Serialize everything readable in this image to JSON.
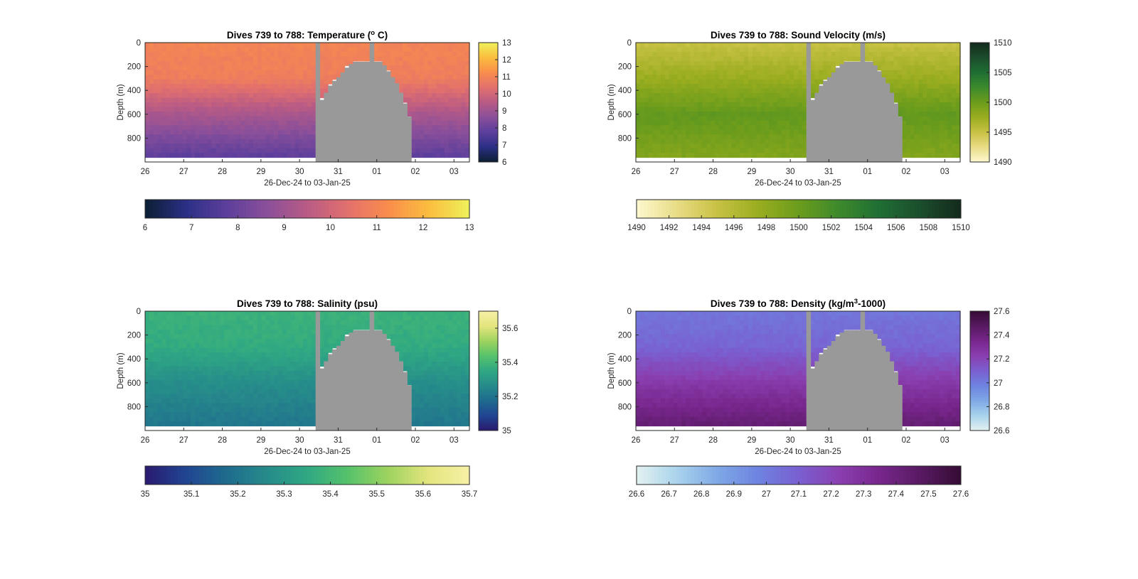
{
  "chart_data": [
    {
      "type": "heatmap",
      "title": "Dives 739 to 788: Temperature (°C)",
      "title_parts": [
        "Dives 739 to 788: Temperature (",
        "o",
        " C)"
      ],
      "xlabel": "26-Dec-24 to 03-Jan-25",
      "ylabel": "Depth (m)",
      "x_tick_labels": [
        "26",
        "27",
        "28",
        "29",
        "30",
        "31",
        "01",
        "02",
        "03"
      ],
      "x_range_days": [
        0,
        8.4
      ],
      "y_ticks": [
        0,
        200,
        400,
        600,
        800
      ],
      "ylim": [
        0,
        1000
      ],
      "y_reversed": true,
      "colorbar": {
        "range": [
          6,
          13
        ],
        "side_ticks": [
          6,
          7,
          8,
          9,
          10,
          11,
          12,
          13
        ],
        "bottom_ticks": [
          "6",
          "7",
          "8",
          "9",
          "10",
          "11",
          "12",
          "13"
        ],
        "colors": [
          "#0b1f33",
          "#2b2f85",
          "#5c3f9c",
          "#8a4f9a",
          "#b95b85",
          "#e2706d",
          "#f98d4c",
          "#fbbd3e",
          "#eef25a"
        ]
      },
      "profile_value": {
        "surface": 11.0,
        "at_300m": 10.8,
        "at_600m": 9.2,
        "bottom": 7.6
      },
      "no_data_value": "gray",
      "no_data_color": "#999999"
    },
    {
      "type": "heatmap",
      "title": "Dives 739 to 788: Sound Velocity (m/s)",
      "title_parts": [
        "Dives 739 to 788: Sound Velocity (m/s)",
        "",
        ""
      ],
      "xlabel": "26-Dec-24 to 03-Jan-25",
      "ylabel": "Depth (m)",
      "x_tick_labels": [
        "26",
        "27",
        "28",
        "29",
        "30",
        "31",
        "01",
        "02",
        "03"
      ],
      "x_range_days": [
        0,
        8.4
      ],
      "y_ticks": [
        0,
        200,
        400,
        600,
        800
      ],
      "ylim": [
        0,
        1000
      ],
      "y_reversed": true,
      "colorbar": {
        "range": [
          1490,
          1510
        ],
        "side_ticks": [
          1490,
          1495,
          1500,
          1505,
          1510
        ],
        "bottom_ticks": [
          "1490",
          "1492",
          "1494",
          "1496",
          "1498",
          "1500",
          "1502",
          "1504",
          "1506",
          "1508",
          "1510"
        ],
        "colors": [
          "#fdf8cf",
          "#e8dc85",
          "#c7c143",
          "#9aad1f",
          "#6b9c1c",
          "#3c8a2c",
          "#1f6e34",
          "#1b4d2c",
          "#142a1c"
        ]
      },
      "profile_value": {
        "surface": 1495.0,
        "at_300m": 1497.5,
        "at_600m": 1500.5,
        "bottom": 1498.5
      },
      "no_data_color": "#999999"
    },
    {
      "type": "heatmap",
      "title": "Dives 739 to 788: Salinity (psu)",
      "title_parts": [
        "Dives 739 to 788: Salinity (psu)",
        "",
        ""
      ],
      "xlabel": "26-Dec-24 to 03-Jan-25",
      "ylabel": "Depth (m)",
      "x_tick_labels": [
        "26",
        "27",
        "28",
        "29",
        "30",
        "31",
        "01",
        "02",
        "03"
      ],
      "x_range_days": [
        0,
        8.4
      ],
      "y_ticks": [
        0,
        200,
        400,
        600,
        800
      ],
      "ylim": [
        0,
        1000
      ],
      "y_reversed": true,
      "colorbar": {
        "range": [
          35,
          35.7
        ],
        "side_ticks": [
          35,
          35.2,
          35.4,
          35.6
        ],
        "bottom_ticks": [
          "35",
          "35.1",
          "35.2",
          "35.3",
          "35.4",
          "35.5",
          "35.6",
          "35.7"
        ],
        "colors": [
          "#2a1a6e",
          "#204592",
          "#1f6b8e",
          "#268b8a",
          "#2fa883",
          "#56c26b",
          "#9ed35f",
          "#e4e57e",
          "#f6f0a6"
        ]
      },
      "profile_value": {
        "surface": 35.38,
        "at_300m": 35.36,
        "at_600m": 35.27,
        "bottom": 35.2
      },
      "no_data_color": "#999999"
    },
    {
      "type": "heatmap",
      "title": "Dives 739 to 788: Density (kg/m³-1000)",
      "title_parts": [
        "Dives 739 to 788: Density (kg/m",
        "3",
        "-1000)"
      ],
      "xlabel": "26-Dec-24 to 03-Jan-25",
      "ylabel": "Depth (m)",
      "x_tick_labels": [
        "26",
        "27",
        "28",
        "29",
        "30",
        "31",
        "01",
        "02",
        "03"
      ],
      "x_range_days": [
        0,
        8.4
      ],
      "y_ticks": [
        0,
        200,
        400,
        600,
        800
      ],
      "ylim": [
        0,
        1000
      ],
      "y_reversed": true,
      "colorbar": {
        "range": [
          26.6,
          27.6
        ],
        "side_ticks": [
          "26.6",
          "26.8",
          "27",
          "27.2",
          "27.4",
          "27.6"
        ],
        "bottom_ticks": [
          "26.6",
          "26.7",
          "26.8",
          "26.9",
          "27",
          "27.1",
          "27.2",
          "27.3",
          "27.4",
          "27.5",
          "27.6"
        ],
        "colors": [
          "#e3f1f1",
          "#a9d3ec",
          "#7fa8e6",
          "#6e83e0",
          "#7a5fd0",
          "#8a3fb0",
          "#77268c",
          "#581a62",
          "#350c35"
        ]
      },
      "profile_value": {
        "surface": 27.02,
        "at_300m": 27.08,
        "at_600m": 27.25,
        "bottom": 27.45
      },
      "no_data_color": "#999999"
    }
  ],
  "gap_profile_depths_m": [
    980,
    980,
    980,
    980,
    980,
    980,
    980,
    980,
    980,
    980,
    980,
    980,
    980,
    980,
    980,
    980,
    980,
    980,
    980,
    980,
    980,
    980,
    980,
    980,
    980,
    980,
    980,
    980,
    980,
    980,
    980,
    980,
    980,
    980,
    980,
    980,
    980,
    980,
    980,
    980,
    980,
    0,
    480,
    420,
    360,
    320,
    290,
    250,
    210,
    180,
    160,
    160,
    160,
    160,
    0,
    160,
    160,
    190,
    240,
    290,
    340,
    420,
    510,
    620,
    980,
    980,
    980,
    980,
    980,
    980,
    980,
    980,
    980,
    980,
    980,
    980,
    980,
    980
  ]
}
